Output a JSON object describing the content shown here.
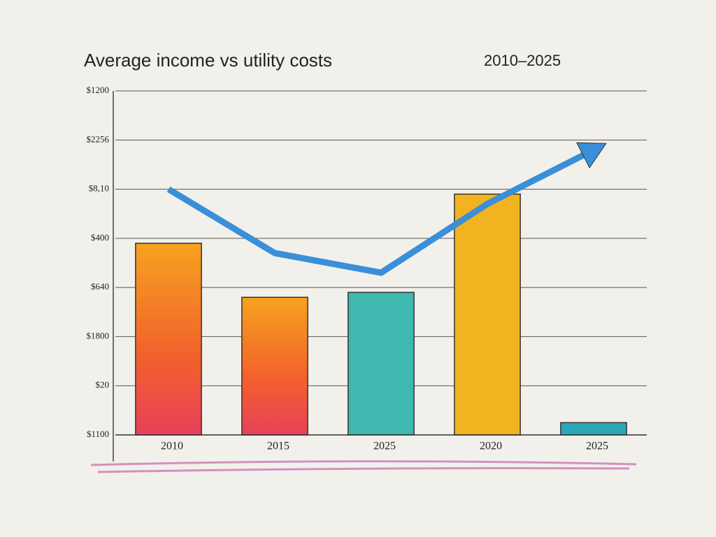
{
  "chart_data": {
    "type": "bar",
    "title": "Average income vs utility costs",
    "subtitle": "2010–2025",
    "categories": [
      "2010",
      "2015",
      "2025",
      "2020",
      "2025"
    ],
    "series": [
      {
        "type": "bar",
        "colors": [
          "#f47a2a",
          "#f0652e",
          "#3fb8b0",
          "#f2b320",
          "#2aa8b8"
        ],
        "values": [
          3.9,
          2.8,
          2.9,
          4.9,
          0.25
        ]
      },
      {
        "type": "line",
        "color": "#3a8fd8",
        "values": [
          5.0,
          3.7,
          3.3,
          4.7,
          5.8
        ]
      }
    ],
    "ylim": [
      0,
      7
    ],
    "yticks": [
      {
        "value": 0,
        "label": "$1100"
      },
      {
        "value": 1,
        "label": "$20"
      },
      {
        "value": 2,
        "label": "$1800"
      },
      {
        "value": 3,
        "label": "$640"
      },
      {
        "value": 4,
        "label": "$400"
      },
      {
        "value": 5,
        "label": "$8,10"
      },
      {
        "value": 6,
        "label": "$2256"
      },
      {
        "value": 7,
        "label": "$1200"
      }
    ],
    "grid": true
  }
}
